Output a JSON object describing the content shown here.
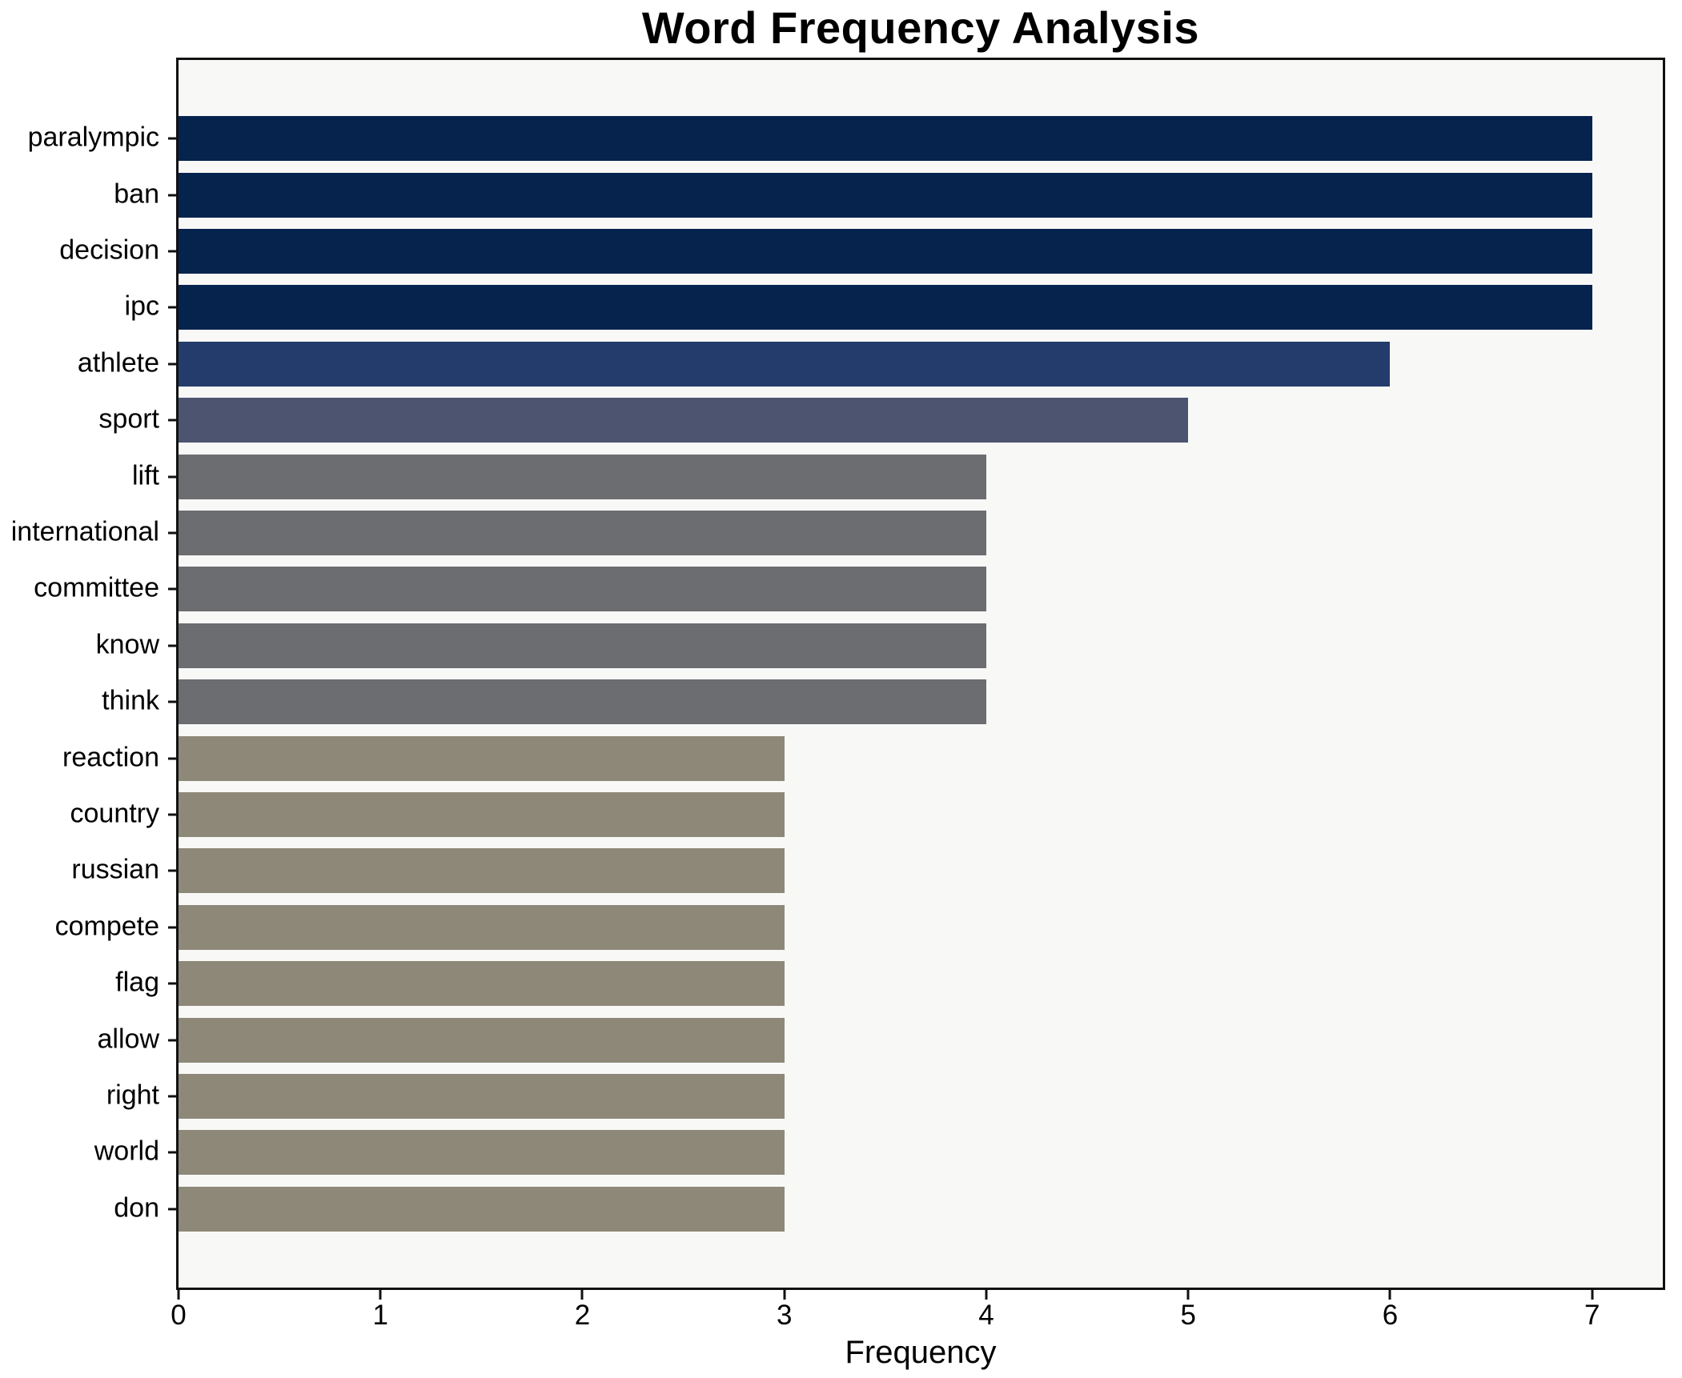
{
  "title": "Word Frequency Analysis",
  "chart_data": {
    "type": "bar",
    "orientation": "horizontal",
    "title": "Word Frequency Analysis",
    "xlabel": "Frequency",
    "ylabel": "",
    "categories": [
      "paralympic",
      "ban",
      "decision",
      "ipc",
      "athlete",
      "sport",
      "lift",
      "international",
      "committee",
      "know",
      "think",
      "reaction",
      "country",
      "russian",
      "compete",
      "flag",
      "allow",
      "right",
      "world",
      "don"
    ],
    "values": [
      7,
      7,
      7,
      7,
      6,
      5,
      4,
      4,
      4,
      4,
      4,
      3,
      3,
      3,
      3,
      3,
      3,
      3,
      3,
      3
    ],
    "xticks": [
      "0",
      "1",
      "2",
      "3",
      "4",
      "5",
      "6",
      "7"
    ],
    "xlim": [
      0,
      7.35
    ],
    "grid": false,
    "legend": "none",
    "bar_width_fraction": 0.8,
    "colors_by_value": {
      "7": "#06234e",
      "6": "#243c6b",
      "5": "#4d5470",
      "4": "#6b6d71",
      "3": "#8e8878"
    },
    "plot_background": "#f8f8f7",
    "page_background": "#ffffff",
    "axis_color": "#111111",
    "text_color": "#000000"
  }
}
